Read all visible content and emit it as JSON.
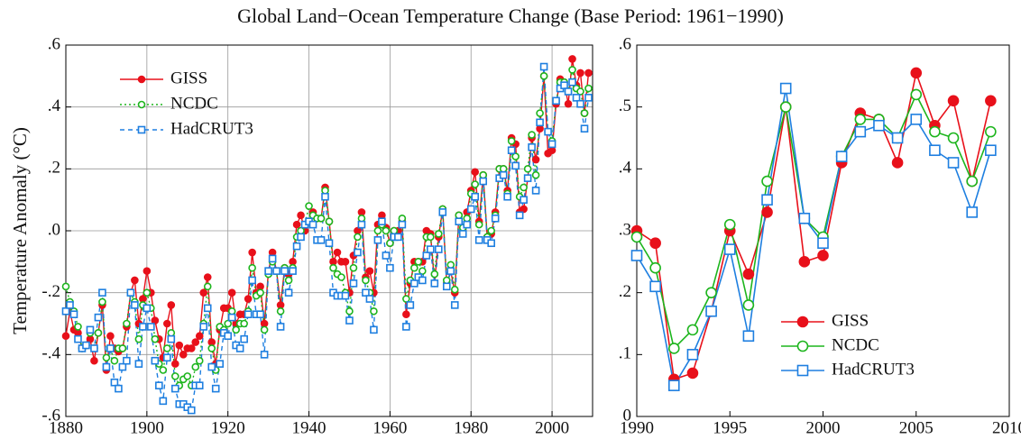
{
  "chart_data": [
    {
      "type": "line",
      "title": "Global Land−Ocean Temperature Change (Base Period: 1961−1990)",
      "y_label": "Temperature Anomaly (°C)",
      "x": [
        1880,
        1881,
        1882,
        1883,
        1884,
        1885,
        1886,
        1887,
        1888,
        1889,
        1890,
        1891,
        1892,
        1893,
        1894,
        1895,
        1896,
        1897,
        1898,
        1899,
        1900,
        1901,
        1902,
        1903,
        1904,
        1905,
        1906,
        1907,
        1908,
        1909,
        1910,
        1911,
        1912,
        1913,
        1914,
        1915,
        1916,
        1917,
        1918,
        1919,
        1920,
        1921,
        1922,
        1923,
        1924,
        1925,
        1926,
        1927,
        1928,
        1929,
        1930,
        1931,
        1932,
        1933,
        1934,
        1935,
        1936,
        1937,
        1938,
        1939,
        1940,
        1941,
        1942,
        1943,
        1944,
        1945,
        1946,
        1947,
        1948,
        1949,
        1950,
        1951,
        1952,
        1953,
        1954,
        1955,
        1956,
        1957,
        1958,
        1959,
        1960,
        1961,
        1962,
        1963,
        1964,
        1965,
        1966,
        1967,
        1968,
        1969,
        1970,
        1971,
        1972,
        1973,
        1974,
        1975,
        1976,
        1977,
        1978,
        1979,
        1980,
        1981,
        1982,
        1983,
        1984,
        1985,
        1986,
        1987,
        1988,
        1989,
        1990,
        1991,
        1992,
        1993,
        1994,
        1995,
        1996,
        1997,
        1998,
        1999,
        2000,
        2001,
        2002,
        2003,
        2004,
        2005,
        2006,
        2007,
        2008,
        2009
      ],
      "series": [
        {
          "name": "GISS",
          "color": "#e8101a",
          "marker": "circle",
          "filled": true,
          "line_style": "solid",
          "values": [
            -0.34,
            -0.26,
            -0.32,
            -0.33,
            -0.38,
            -0.37,
            -0.35,
            -0.42,
            -0.33,
            -0.24,
            -0.45,
            -0.34,
            -0.38,
            -0.39,
            -0.38,
            -0.31,
            -0.2,
            -0.16,
            -0.3,
            -0.22,
            -0.13,
            -0.2,
            -0.29,
            -0.35,
            -0.41,
            -0.3,
            -0.24,
            -0.43,
            -0.37,
            -0.4,
            -0.38,
            -0.38,
            -0.36,
            -0.34,
            -0.2,
            -0.15,
            -0.36,
            -0.43,
            -0.32,
            -0.25,
            -0.25,
            -0.2,
            -0.3,
            -0.27,
            -0.27,
            -0.22,
            -0.07,
            -0.2,
            -0.18,
            -0.3,
            -0.13,
            -0.07,
            -0.13,
            -0.24,
            -0.12,
            -0.14,
            -0.1,
            0.02,
            0.05,
            0.0,
            0.03,
            0.06,
            0.04,
            0.04,
            0.14,
            0.03,
            -0.1,
            -0.07,
            -0.1,
            -0.1,
            -0.2,
            -0.08,
            0.0,
            0.06,
            -0.15,
            -0.13,
            -0.2,
            0.02,
            0.05,
            0.01,
            -0.04,
            0.0,
            0.0,
            0.03,
            -0.27,
            -0.17,
            -0.1,
            -0.1,
            -0.1,
            0.0,
            -0.01,
            -0.17,
            -0.02,
            0.07,
            -0.17,
            -0.13,
            -0.2,
            0.05,
            0.0,
            0.06,
            0.13,
            0.19,
            0.03,
            0.18,
            -0.02,
            -0.01,
            0.06,
            0.2,
            0.2,
            0.13,
            0.3,
            0.28,
            0.06,
            0.07,
            0.17,
            0.3,
            0.23,
            0.33,
            0.5,
            0.25,
            0.26,
            0.41,
            0.49,
            0.48,
            0.41,
            0.555,
            0.47,
            0.51,
            0.38,
            0.51
          ]
        },
        {
          "name": "NCDC",
          "color": "#1db51d",
          "marker": "circle",
          "filled": false,
          "line_style": "dotted",
          "values": [
            -0.18,
            -0.23,
            -0.26,
            -0.31,
            -0.38,
            -0.37,
            -0.33,
            -0.38,
            -0.33,
            -0.23,
            -0.41,
            -0.38,
            -0.42,
            -0.38,
            -0.38,
            -0.3,
            -0.2,
            -0.23,
            -0.35,
            -0.24,
            -0.2,
            -0.25,
            -0.35,
            -0.43,
            -0.45,
            -0.38,
            -0.33,
            -0.47,
            -0.5,
            -0.48,
            -0.47,
            -0.5,
            -0.44,
            -0.42,
            -0.3,
            -0.18,
            -0.38,
            -0.45,
            -0.31,
            -0.32,
            -0.3,
            -0.26,
            -0.32,
            -0.3,
            -0.3,
            -0.26,
            -0.12,
            -0.21,
            -0.2,
            -0.32,
            -0.14,
            -0.1,
            -0.13,
            -0.26,
            -0.12,
            -0.16,
            -0.12,
            -0.02,
            0.0,
            0.02,
            0.08,
            0.05,
            0.04,
            0.04,
            0.13,
            0.03,
            -0.12,
            -0.14,
            -0.15,
            -0.2,
            -0.26,
            -0.12,
            -0.02,
            0.04,
            -0.16,
            -0.2,
            -0.26,
            0.0,
            0.02,
            0.0,
            -0.04,
            0.0,
            -0.02,
            0.04,
            -0.22,
            -0.16,
            -0.12,
            -0.1,
            -0.13,
            -0.02,
            -0.02,
            -0.14,
            -0.01,
            0.07,
            -0.16,
            -0.11,
            -0.19,
            0.05,
            0.01,
            0.04,
            0.12,
            0.15,
            0.02,
            0.18,
            -0.02,
            0.0,
            0.05,
            0.2,
            0.2,
            0.12,
            0.29,
            0.24,
            0.11,
            0.14,
            0.2,
            0.31,
            0.18,
            0.38,
            0.5,
            0.32,
            0.29,
            0.42,
            0.48,
            0.48,
            0.45,
            0.52,
            0.46,
            0.45,
            0.38,
            0.46
          ]
        },
        {
          "name": "HadCRUT3",
          "color": "#1e7fe0",
          "marker": "square",
          "filled": false,
          "line_style": "dashed",
          "values": [
            -0.26,
            -0.24,
            -0.27,
            -0.35,
            -0.38,
            -0.37,
            -0.32,
            -0.38,
            -0.28,
            -0.2,
            -0.44,
            -0.38,
            -0.49,
            -0.51,
            -0.44,
            -0.42,
            -0.2,
            -0.24,
            -0.43,
            -0.31,
            -0.25,
            -0.31,
            -0.42,
            -0.5,
            -0.55,
            -0.41,
            -0.35,
            -0.51,
            -0.56,
            -0.56,
            -0.57,
            -0.58,
            -0.5,
            -0.5,
            -0.31,
            -0.25,
            -0.44,
            -0.51,
            -0.43,
            -0.33,
            -0.34,
            -0.28,
            -0.37,
            -0.38,
            -0.35,
            -0.27,
            -0.16,
            -0.27,
            -0.27,
            -0.4,
            -0.13,
            -0.09,
            -0.13,
            -0.31,
            -0.13,
            -0.2,
            -0.13,
            -0.05,
            -0.02,
            0.02,
            0.03,
            0.02,
            -0.03,
            -0.03,
            0.11,
            -0.04,
            -0.2,
            -0.21,
            -0.21,
            -0.21,
            -0.29,
            -0.17,
            -0.07,
            0.02,
            -0.2,
            -0.22,
            -0.32,
            -0.03,
            0.03,
            -0.08,
            -0.12,
            -0.02,
            -0.02,
            0.02,
            -0.31,
            -0.24,
            -0.17,
            -0.15,
            -0.16,
            -0.08,
            -0.06,
            -0.17,
            -0.06,
            0.06,
            -0.18,
            -0.13,
            -0.24,
            0.03,
            -0.01,
            0.02,
            0.07,
            0.11,
            -0.03,
            0.16,
            -0.03,
            -0.04,
            0.04,
            0.17,
            0.18,
            0.11,
            0.26,
            0.21,
            0.05,
            0.1,
            0.17,
            0.27,
            0.13,
            0.35,
            0.53,
            0.32,
            0.28,
            0.42,
            0.46,
            0.47,
            0.45,
            0.48,
            0.43,
            0.41,
            0.33,
            0.43
          ]
        }
      ],
      "xlim": [
        1880,
        2010
      ],
      "xticks": [
        1880,
        1900,
        1920,
        1940,
        1960,
        1980,
        2000
      ],
      "ylim": [
        -0.6,
        0.6
      ],
      "yticks": [
        {
          "value": -0.6,
          "label": "-.6"
        },
        {
          "value": -0.4,
          "label": "-.4"
        },
        {
          "value": -0.2,
          "label": "-.2"
        },
        {
          "value": 0,
          "label": ".0"
        },
        {
          "value": 0.2,
          "label": ".2"
        },
        {
          "value": 0.4,
          "label": ".4"
        },
        {
          "value": 0.6,
          "label": ".6"
        }
      ],
      "grid": true,
      "legend": "upper left"
    },
    {
      "type": "line",
      "x": [
        1990,
        1991,
        1992,
        1993,
        1994,
        1995,
        1996,
        1997,
        1998,
        1999,
        2000,
        2001,
        2002,
        2003,
        2004,
        2005,
        2006,
        2007,
        2008,
        2009
      ],
      "series": [
        {
          "name": "GISS",
          "color": "#e8101a",
          "marker": "circle",
          "filled": true,
          "line_style": "solid",
          "values": [
            0.3,
            0.28,
            0.06,
            0.07,
            0.17,
            0.3,
            0.23,
            0.33,
            0.5,
            0.25,
            0.26,
            0.41,
            0.49,
            0.48,
            0.41,
            0.555,
            0.47,
            0.51,
            0.38,
            0.51
          ]
        },
        {
          "name": "NCDC",
          "color": "#1db51d",
          "marker": "circle",
          "filled": false,
          "line_style": "solid",
          "values": [
            0.29,
            0.24,
            0.11,
            0.14,
            0.2,
            0.31,
            0.18,
            0.38,
            0.5,
            0.32,
            0.29,
            0.42,
            0.48,
            0.48,
            0.45,
            0.52,
            0.46,
            0.45,
            0.38,
            0.46
          ]
        },
        {
          "name": "HadCRUT3",
          "color": "#1e7fe0",
          "marker": "square",
          "filled": false,
          "line_style": "solid",
          "values": [
            0.26,
            0.21,
            0.05,
            0.1,
            0.17,
            0.27,
            0.13,
            0.35,
            0.53,
            0.32,
            0.28,
            0.42,
            0.46,
            0.47,
            0.45,
            0.48,
            0.43,
            0.41,
            0.33,
            0.43
          ]
        }
      ],
      "xlim": [
        1990,
        2010
      ],
      "xticks": [
        1990,
        1995,
        2000,
        2005,
        2010
      ],
      "ylim": [
        0,
        0.6
      ],
      "yticks": [
        0,
        {
          "value": 0.1,
          "label": ".1"
        },
        {
          "value": 0.2,
          "label": ".2"
        },
        {
          "value": 0.3,
          "label": ".3"
        },
        {
          "value": 0.4,
          "label": ".4"
        },
        {
          "value": 0.5,
          "label": ".5"
        },
        {
          "value": 0.6,
          "label": ".6"
        }
      ],
      "grid": false,
      "legend": "lower center"
    }
  ]
}
